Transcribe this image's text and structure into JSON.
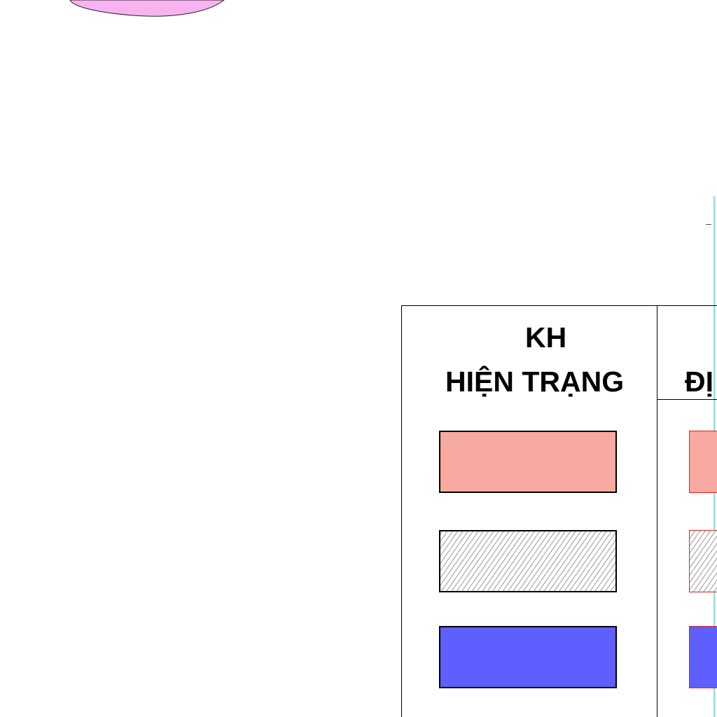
{
  "legend": {
    "header": {
      "line1": "KH",
      "line2": "HIỆN TRẠNG",
      "next_column_fragment": "ĐỊ"
    },
    "rows": [
      {
        "fill": "#f8a9a0",
        "pattern": "solid",
        "name": "legend-swatch-salmon"
      },
      {
        "fill": "#ffffff",
        "pattern": "hatched",
        "hatch_color": "#9a9a9a",
        "name": "legend-swatch-hatched"
      },
      {
        "fill": "#5f5fff",
        "pattern": "solid",
        "name": "legend-swatch-blue"
      }
    ]
  },
  "map": {
    "blob_color": "#f7b3f0",
    "guide_line_color": "#7fe3e3"
  }
}
